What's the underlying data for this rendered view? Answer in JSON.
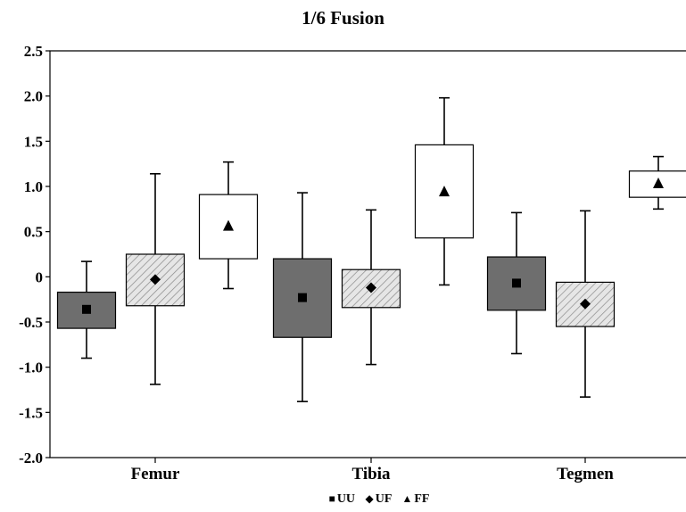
{
  "chart_data": {
    "type": "boxplot",
    "title": "1/6 Fusion",
    "xlabel": "",
    "ylabel": "",
    "ylim": [
      -2.0,
      2.5
    ],
    "yticks": [
      2.5,
      2.0,
      1.5,
      1.0,
      0.5,
      0,
      -0.5,
      -1.0,
      -1.5,
      -2.0
    ],
    "ytick_labels": [
      "2.5",
      "2.0",
      "1.5",
      "1.0",
      "0.5",
      "0",
      "-0.5",
      "-1.0",
      "-1.5",
      "-2.0"
    ],
    "grid": false,
    "legend_placement": "bottom",
    "categories": [
      "Femur",
      "Tibia",
      "Tegmen"
    ],
    "series": [
      {
        "name": "UU",
        "marker": "square",
        "fill": "#6e6e6e",
        "pattern": "solid",
        "boxes": [
          {
            "whisker_low": -0.9,
            "q1": -0.57,
            "center": -0.36,
            "q3": -0.17,
            "whisker_high": 0.17
          },
          {
            "whisker_low": -1.38,
            "q1": -0.67,
            "center": -0.23,
            "q3": 0.2,
            "whisker_high": 0.93
          },
          {
            "whisker_low": -0.85,
            "q1": -0.37,
            "center": -0.07,
            "q3": 0.22,
            "whisker_high": 0.71
          }
        ]
      },
      {
        "name": "UF",
        "marker": "diamond",
        "fill": "#dcdcdc",
        "pattern": "hatched",
        "boxes": [
          {
            "whisker_low": -1.19,
            "q1": -0.32,
            "center": -0.03,
            "q3": 0.25,
            "whisker_high": 1.14
          },
          {
            "whisker_low": -0.97,
            "q1": -0.34,
            "center": -0.12,
            "q3": 0.08,
            "whisker_high": 0.74
          },
          {
            "whisker_low": -1.33,
            "q1": -0.55,
            "center": -0.3,
            "q3": -0.06,
            "whisker_high": 0.73
          }
        ]
      },
      {
        "name": "FF",
        "marker": "triangle",
        "fill": "#ffffff",
        "pattern": "solid",
        "boxes": [
          {
            "whisker_low": -0.13,
            "q1": 0.2,
            "center": 0.56,
            "q3": 0.91,
            "whisker_high": 1.27
          },
          {
            "whisker_low": -0.09,
            "q1": 0.43,
            "center": 0.94,
            "q3": 1.46,
            "whisker_high": 1.98
          },
          {
            "whisker_low": 0.75,
            "q1": 0.88,
            "center": 1.03,
            "q3": 1.17,
            "whisker_high": 1.33
          }
        ]
      }
    ]
  }
}
